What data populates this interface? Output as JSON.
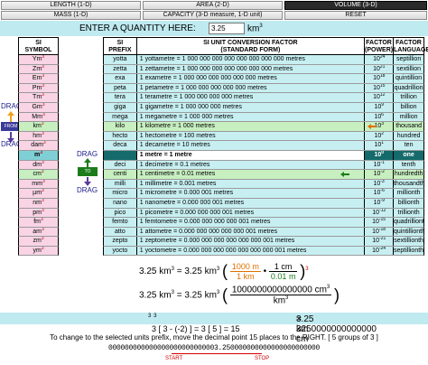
{
  "tabs": {
    "length": "LENGTH (1-D)",
    "area": "AREA (2-D)",
    "volume": "VOLUME (3-D)",
    "mass": "MASS (1-D)",
    "capacity": "CAPACITY (3-D measure, 1-D unit)",
    "reset": "RESET"
  },
  "entry": {
    "label": "ENTER A QUANTITY HERE:",
    "value": "3.25",
    "unit": "km",
    "unit_exp": "3"
  },
  "left_table": {
    "header": "SI\nSYMBOL",
    "rows": [
      {
        "sym": "Ym",
        "exp": "3"
      },
      {
        "sym": "Zm",
        "exp": "3"
      },
      {
        "sym": "Em",
        "exp": "3"
      },
      {
        "sym": "Pm",
        "exp": "3"
      },
      {
        "sym": "Tm",
        "exp": "3"
      },
      {
        "sym": "Gm",
        "exp": "3"
      },
      {
        "sym": "Mm",
        "exp": "3"
      },
      {
        "sym": "km",
        "exp": "3"
      },
      {
        "sym": "hm",
        "exp": "3"
      },
      {
        "sym": "dam",
        "exp": "3"
      },
      {
        "sym": "m",
        "exp": "3"
      },
      {
        "sym": "dm",
        "exp": "3"
      },
      {
        "sym": "cm",
        "exp": "3"
      },
      {
        "sym": "mm",
        "exp": "3"
      },
      {
        "sym": "µm",
        "exp": "3"
      },
      {
        "sym": "nm",
        "exp": "3"
      },
      {
        "sym": "pm",
        "exp": "3"
      },
      {
        "sym": "fm",
        "exp": "3"
      },
      {
        "sym": "am",
        "exp": "3"
      },
      {
        "sym": "zm",
        "exp": "3"
      },
      {
        "sym": "ym",
        "exp": "3"
      }
    ]
  },
  "main_table": {
    "headers": {
      "prefix": "SI\nPREFIX",
      "factor": "SI UNIT CONVERSION FACTOR\n(STANDARD FORM)",
      "power": "FACTOR\n(POWER)",
      "language": "FACTOR\nLANGUAGE"
    },
    "rows": [
      {
        "prefix": "yotta",
        "factor": "1 yottametre = 1 000 000 000 000 000 000 000 000 metres",
        "power": "24",
        "lang": "septillion"
      },
      {
        "prefix": "zetta",
        "factor": "1 zettametre = 1 000 000 000 000 000 000 000 metres",
        "power": "21",
        "lang": "sextillion"
      },
      {
        "prefix": "exa",
        "factor": "1 exametre = 1 000 000 000 000 000 000 metres",
        "power": "18",
        "lang": "quintillion"
      },
      {
        "prefix": "peta",
        "factor": "1 petametre = 1 000 000 000 000 000 metres",
        "power": "15",
        "lang": "quadrillion"
      },
      {
        "prefix": "tera",
        "factor": "1 terametre = 1 000 000 000 000 metres",
        "power": "12",
        "lang": "trillion"
      },
      {
        "prefix": "giga",
        "factor": "1 gigametre = 1 000 000 000 metres",
        "power": "9",
        "lang": "billion"
      },
      {
        "prefix": "mega",
        "factor": "1 megametre = 1 000 000 metres",
        "power": "6",
        "lang": "million"
      },
      {
        "prefix": "kilo",
        "factor": "1 kilometre = 1 000 metres",
        "power": "3",
        "lang": "thousand"
      },
      {
        "prefix": "hecto",
        "factor": "1 hectometre = 100 metres",
        "power": "2",
        "lang": "hundred"
      },
      {
        "prefix": "deca",
        "factor": "1 decametre = 10 metres",
        "power": "1",
        "lang": "ten"
      },
      {
        "prefix": "",
        "factor": "1 metre = 1 metre",
        "power": "0",
        "lang": "one"
      },
      {
        "prefix": "deci",
        "factor": "1 decimetre = 0.1 metres",
        "power": "-1",
        "lang": "tenth"
      },
      {
        "prefix": "centi",
        "factor": "1 centimetre = 0.01 metres",
        "power": "-2",
        "lang": "hundredth"
      },
      {
        "prefix": "milli",
        "factor": "1 millimetre = 0.001 metres",
        "power": "-3",
        "lang": "thousandth"
      },
      {
        "prefix": "micro",
        "factor": "1 micrometre = 0.000 001 metres",
        "power": "-6",
        "lang": "millionth"
      },
      {
        "prefix": "nano",
        "factor": "1 nanometre = 0.000 000 001 metres",
        "power": "-9",
        "lang": "billionth"
      },
      {
        "prefix": "pico",
        "factor": "1 picometre = 0.000 000 000 001 metres",
        "power": "-12",
        "lang": "trillionth"
      },
      {
        "prefix": "femto",
        "factor": "1 femtometre = 0.000 000 000 000 001 metres",
        "power": "-15",
        "lang": "quadrillionth"
      },
      {
        "prefix": "atto",
        "factor": "1 attometre = 0.000 000 000 000 000 001 metres",
        "power": "-18",
        "lang": "quintillionth"
      },
      {
        "prefix": "zepto",
        "factor": "1 zeptometre = 0.000 000 000 000 000 000 001 metres",
        "power": "-21",
        "lang": "sextillionth"
      },
      {
        "prefix": "yocto",
        "factor": "1 yoctometre = 0.000 000 000 000 000 000 000 001 metres",
        "power": "-24",
        "lang": "septillionth"
      }
    ]
  },
  "drag": {
    "left_label": "DRAG",
    "right_label": "DRAG",
    "from_label": "FROM",
    "to_label": "TO"
  },
  "formula": {
    "f1_lhs": "3.25 km",
    "f1_mid": "= 3.25 km",
    "f1_num1": "1000 m",
    "f1_den1": "1 km",
    "f1_num2": "1 cm",
    "f1_den2": "0.01 m",
    "f1_exp": "3",
    "f2_lhs": "3.25 km",
    "f2_mid": "= 3.25 km",
    "f2_num": "1000000000000000 cm",
    "f2_den": "km",
    "f3": "3.25 km",
    "f3_rhs": "= 3250000000000000 cm",
    "calc": "3 [ 3 - (-2) ] = 3 [ 5 ] = 15",
    "note": "To change to the selected units prefix, move the decimal point 15 places to the RIGHT.  [ 5 groups of 3 ]",
    "zeros": "000000000000000000000000003.250000000000000000000000",
    "start": "START",
    "stop": "STOP"
  },
  "colors": {
    "pink_row": "#f9d4e5",
    "green_row": "#c7efc0",
    "selected_dark": "#156b6b",
    "base_row": "#7fd0d6",
    "entry_bar": "#bfeaf0"
  }
}
